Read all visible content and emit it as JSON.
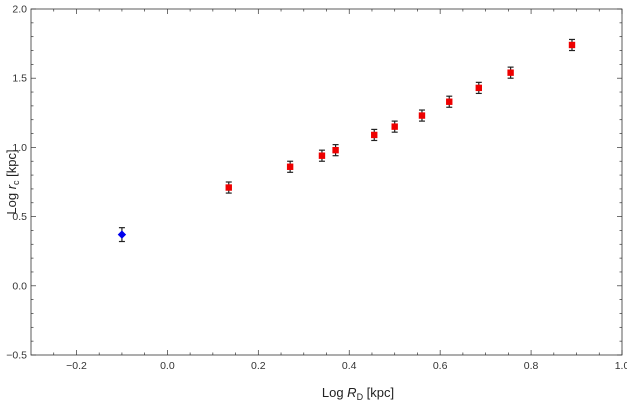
{
  "chart_data": {
    "type": "scatter",
    "title": "",
    "xlabel": {
      "prefix": "Log ",
      "symbol": "R",
      "sub": "D",
      "suffix": " [kpc]"
    },
    "ylabel": {
      "prefix": "Log ",
      "symbol": "r",
      "sub": "c",
      "suffix": " [kpc]"
    },
    "xlim": [
      -0.3,
      1.0
    ],
    "ylim": [
      -0.5,
      2.0
    ],
    "x_ticks": [
      -0.2,
      0.0,
      0.2,
      0.4,
      0.6,
      0.8,
      1.0
    ],
    "x_tick_labels": [
      "−0.2",
      "0.0",
      "0.2",
      "0.4",
      "0.6",
      "0.8",
      "1.0"
    ],
    "y_ticks": [
      -0.5,
      0.0,
      0.5,
      1.0,
      1.5,
      2.0
    ],
    "y_tick_labels": [
      "−0.5",
      "0.0",
      "0.5",
      "1.0",
      "1.5",
      "2.0"
    ],
    "grid": false,
    "series": [
      {
        "marker": "diamond",
        "color": "#0000ee",
        "points": [
          {
            "x": -0.1,
            "y": 0.37,
            "err": 0.05
          }
        ]
      },
      {
        "marker": "square",
        "color": "#ee0000",
        "points": [
          {
            "x": 0.135,
            "y": 0.71,
            "err": 0.04
          },
          {
            "x": 0.27,
            "y": 0.86,
            "err": 0.04
          },
          {
            "x": 0.34,
            "y": 0.94,
            "err": 0.04
          },
          {
            "x": 0.37,
            "y": 0.98,
            "err": 0.04
          },
          {
            "x": 0.455,
            "y": 1.09,
            "err": 0.04
          },
          {
            "x": 0.5,
            "y": 1.15,
            "err": 0.04
          },
          {
            "x": 0.56,
            "y": 1.23,
            "err": 0.04
          },
          {
            "x": 0.62,
            "y": 1.33,
            "err": 0.04
          },
          {
            "x": 0.685,
            "y": 1.43,
            "err": 0.04
          },
          {
            "x": 0.755,
            "y": 1.54,
            "err": 0.04
          },
          {
            "x": 0.89,
            "y": 1.74,
            "err": 0.04
          }
        ]
      }
    ]
  }
}
